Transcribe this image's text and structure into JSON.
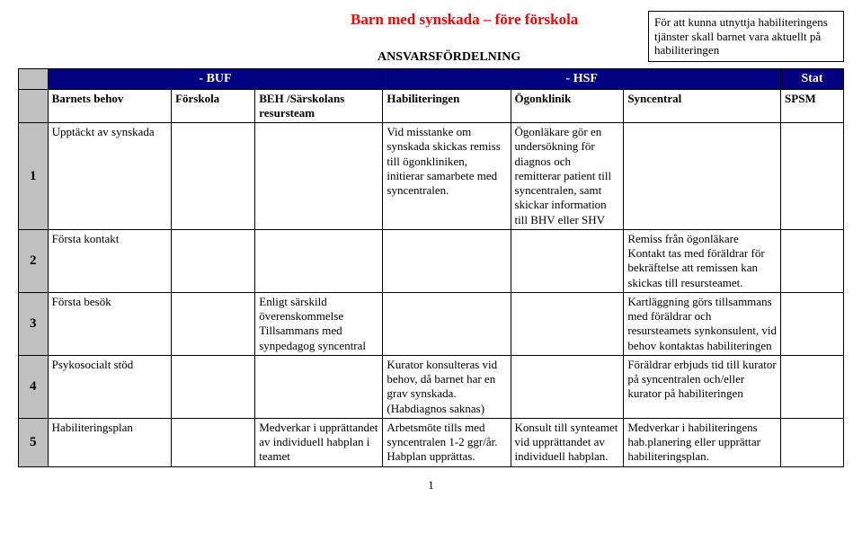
{
  "title": "Barn med synskada – före förskola",
  "subtitle": "ANSVARSFÖRDELNING",
  "note": "För att kunna utnyttja habiliteringens tjänster skall barnet vara aktuellt på habiliteringen",
  "group_headers": {
    "buf": "- BUF",
    "hsf": "- HSF",
    "stat": "Stat"
  },
  "col_headers": {
    "behov": "Barnets behov",
    "forskola": "Förskola",
    "beh": "BEH /Särskolans resursteam",
    "hab": "Habiliteringen",
    "ogon": "Ögonklinik",
    "syn": "Syncentral",
    "spsm": "SPSM"
  },
  "rows": [
    {
      "num": "1",
      "behov": "Upptäckt av synskada",
      "forskola": "",
      "beh": "",
      "hab": "Vid misstanke om synskada skickas remiss till ögonkliniken, initierar samarbete med syncentralen.",
      "ogon": "Ögonläkare gör en undersökning för diagnos och remitterar patient till syncentralen, samt skickar information till BHV eller SHV",
      "syn": "",
      "spsm": ""
    },
    {
      "num": "2",
      "behov": "Första kontakt",
      "forskola": "",
      "beh": "",
      "hab": "",
      "ogon": "",
      "syn": "Remiss från ögonläkare Kontakt tas med föräldrar för bekräftelse att remissen kan skickas till resursteamet.",
      "spsm": ""
    },
    {
      "num": "3",
      "behov": "Första besök",
      "forskola": "",
      "beh": "Enligt särskild överenskommelse Tillsammans med synpedagog syncentral",
      "hab": "",
      "ogon": "",
      "syn": "Kartläggning görs tillsammans med föräldrar och resursteamets synkonsulent, vid behov kontaktas habiliteringen",
      "spsm": ""
    },
    {
      "num": "4",
      "behov": "Psykosocialt stöd",
      "forskola": "",
      "beh": "",
      "hab": "Kurator konsulteras vid behov, då barnet har en grav synskada. (Habdiagnos saknas)",
      "ogon": "",
      "syn": "Föräldrar erbjuds tid till kurator på syncentralen och/eller kurator på habiliteringen",
      "spsm": ""
    },
    {
      "num": "5",
      "behov": "Habiliteringsplan",
      "forskola": "",
      "beh": "Medverkar i upprättandet av individuell habplan i teamet",
      "hab": "Arbetsmöte tills med syncentralen 1-2 ggr/år. Habplan upprättas.",
      "ogon": "Konsult till synteamet vid upprättandet av individuell habplan.",
      "syn": "Medverkar i habiliteringens hab.planering eller upprättar habiliteringsplan.",
      "spsm": ""
    }
  ],
  "page_number": "1"
}
